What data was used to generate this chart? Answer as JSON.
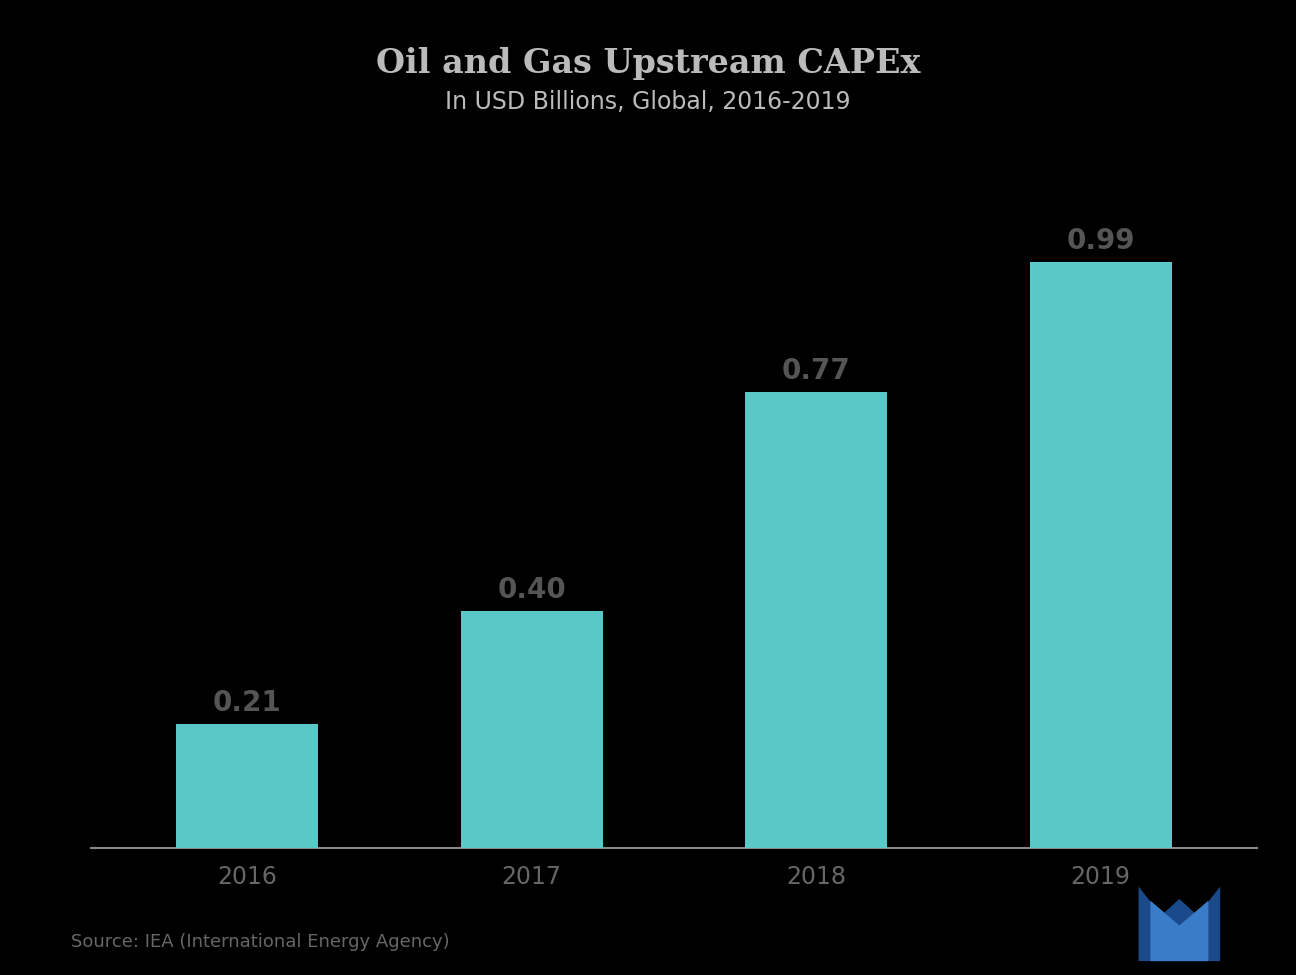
{
  "title_line1": "Oil and Gas Upstream CAPEx",
  "title_line2": "In USD Billions, Global, 2016-2019",
  "categories": [
    "2016",
    "2017",
    "2018",
    "2019"
  ],
  "values": [
    0.21,
    0.4,
    0.77,
    0.99
  ],
  "bar_color": "#5BC8C8",
  "background_color": "#000000",
  "title_color": "#BBBBBB",
  "label_color": "#555555",
  "axis_label_color": "#666666",
  "title_fontsize": 24,
  "subtitle_fontsize": 17,
  "bar_label_fontsize": 20,
  "tick_fontsize": 17,
  "source_text": "Source: IEA (International Energy Agency)",
  "ylim": [
    0,
    1.12
  ]
}
